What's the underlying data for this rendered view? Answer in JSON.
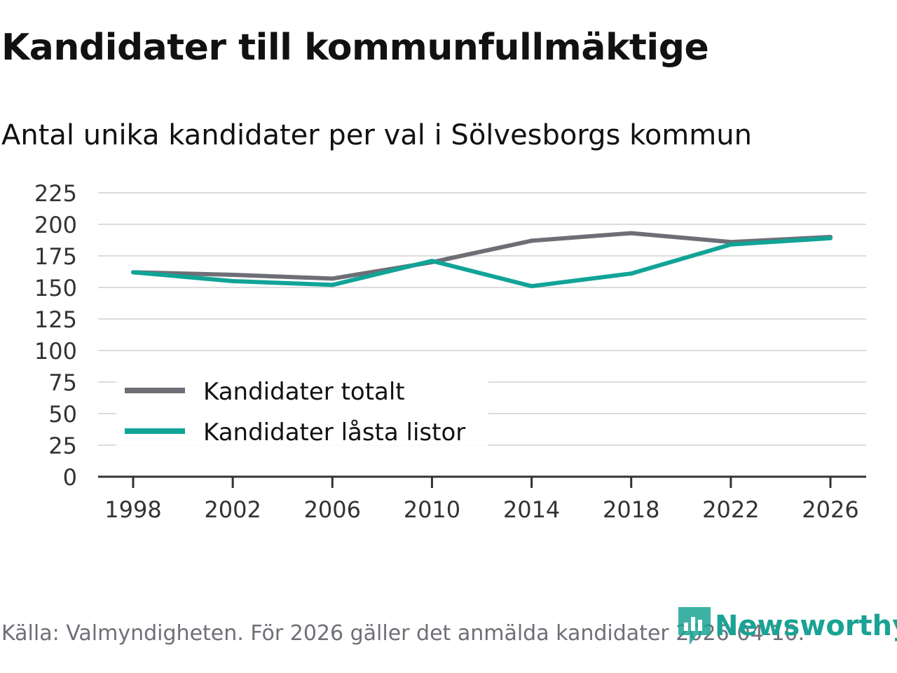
{
  "chart_data": {
    "type": "line",
    "title": "Kandidater till kommunfullmäktige",
    "subtitle": "Antal unika kandidater per val i Sölvesborgs kommun",
    "x": [
      1998,
      2002,
      2006,
      2010,
      2014,
      2018,
      2022,
      2026
    ],
    "x_tick_labels": [
      "1998",
      "2002",
      "2006",
      "2010",
      "2014",
      "2018",
      "2022",
      "2026"
    ],
    "y_tick_labels": [
      "0",
      "25",
      "50",
      "75",
      "100",
      "125",
      "150",
      "175",
      "200",
      "225"
    ],
    "ylim": [
      0,
      225
    ],
    "xlabel": "",
    "ylabel": "",
    "grid": true,
    "legend_position": "bottom-left",
    "series": [
      {
        "name": "Kandidater totalt",
        "color": "#6e6e76",
        "values": [
          162,
          160,
          157,
          170,
          187,
          193,
          186,
          190
        ]
      },
      {
        "name": "Kandidater låsta listor",
        "color": "#10a497",
        "values": [
          162,
          155,
          152,
          171,
          151,
          161,
          184,
          189
        ]
      }
    ]
  },
  "footer": {
    "source": "Källa: Valmyndigheten. För 2026 gäller det anmälda kandidater 2026-04-10.",
    "brand": "Newsworthy",
    "brand_icon": "bar-chart-flag-icon",
    "brand_color": "#1aa394"
  }
}
